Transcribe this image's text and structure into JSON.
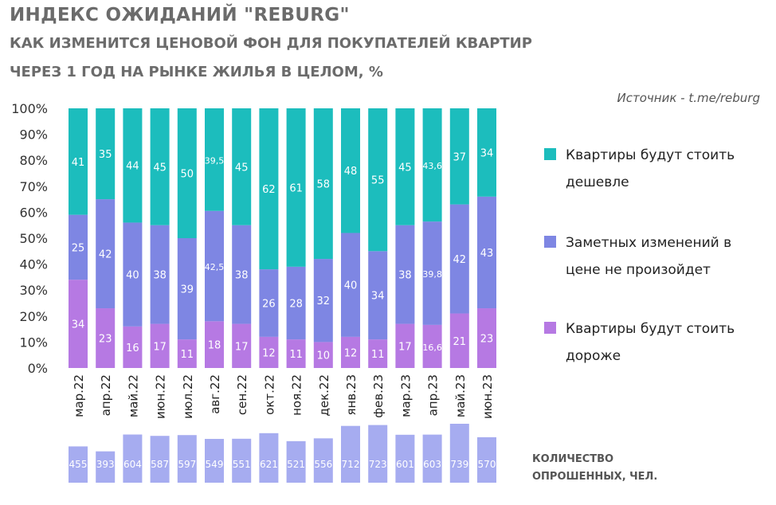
{
  "title": "ИНДЕКС ОЖИДАНИЙ \"REBURG\"",
  "subtitle_line1": "КАК ИЗМЕНИТСЯ ЦЕНОВОЙ ФОН ДЛЯ ПОКУПАТЕЛЕЙ КВАРТИР",
  "subtitle_line2": "ЧЕРЕЗ  1 ГОД НА РЫНКЕ ЖИЛЬЯ В ЦЕЛОМ, %",
  "source": "Источник - t.me/reburg",
  "legend": [
    {
      "label": "Квартиры будут стоить дешевле",
      "color": "#1cbdbd"
    },
    {
      "label": "Заметных изменений в цене не произойдет",
      "color": "#7e86e3"
    },
    {
      "label": "Квартиры будут стоить дороже",
      "color": "#b679e3"
    }
  ],
  "count_label_line1": "КОЛИЧЕСТВО",
  "count_label_line2": "ОПРОШЕННЫХ, ЧЕЛ.",
  "colors": {
    "cheaper": "#1cbdbd",
    "no_change": "#7e86e3",
    "pricier": "#b679e3",
    "count": "#a6acf0"
  },
  "chart_data": {
    "type": "bar",
    "stacked": true,
    "y_axis_ticks": [
      "0%",
      "10%",
      "20%",
      "30%",
      "40%",
      "50%",
      "60%",
      "70%",
      "80%",
      "90%",
      "100%"
    ],
    "ylim": [
      0,
      100
    ],
    "categories": [
      "мар.22",
      "апр.22",
      "май.22",
      "июн.22",
      "июл.22",
      "авг.22",
      "сен.22",
      "окт.22",
      "ноя.22",
      "дек.22",
      "янв.23",
      "фев.23",
      "мар.23",
      "апр.23",
      "май.23",
      "июн.23"
    ],
    "series": [
      {
        "name": "Квартиры будут стоить дороже",
        "values": [
          34,
          23,
          16,
          17,
          11,
          18,
          17,
          12,
          11,
          10,
          12,
          11,
          17,
          16.6,
          21,
          23
        ],
        "labels": [
          "34",
          "23",
          "16",
          "17",
          "11",
          "18",
          "17",
          "12",
          "11",
          "10",
          "12",
          "11",
          "17",
          "16,6",
          "21",
          "23"
        ]
      },
      {
        "name": "Заметных изменений в цене не произойдет",
        "values": [
          25,
          42,
          40,
          38,
          39,
          42.5,
          38,
          26,
          28,
          32,
          40,
          34,
          38,
          39.8,
          42,
          43
        ],
        "labels": [
          "25",
          "42",
          "40",
          "38",
          "39",
          "42,5",
          "38",
          "26",
          "28",
          "32",
          "40",
          "34",
          "38",
          "39,8",
          "42",
          "43"
        ]
      },
      {
        "name": "Квартиры будут стоить дешевле",
        "values": [
          41,
          35,
          44,
          45,
          50,
          39.5,
          45,
          62,
          61,
          58,
          48,
          55,
          45,
          43.6,
          37,
          34
        ],
        "labels": [
          "41",
          "35",
          "44",
          "45",
          "50",
          "39,5",
          "45",
          "62",
          "61",
          "58",
          "48",
          "55",
          "45",
          "43,6",
          "37",
          "34"
        ]
      }
    ],
    "respondents": {
      "title": "КОЛИЧЕСТВО ОПРОШЕННЫХ, ЧЕЛ.",
      "values": [
        455,
        393,
        604,
        587,
        597,
        549,
        551,
        621,
        521,
        556,
        712,
        723,
        601,
        603,
        739,
        570
      ]
    }
  }
}
